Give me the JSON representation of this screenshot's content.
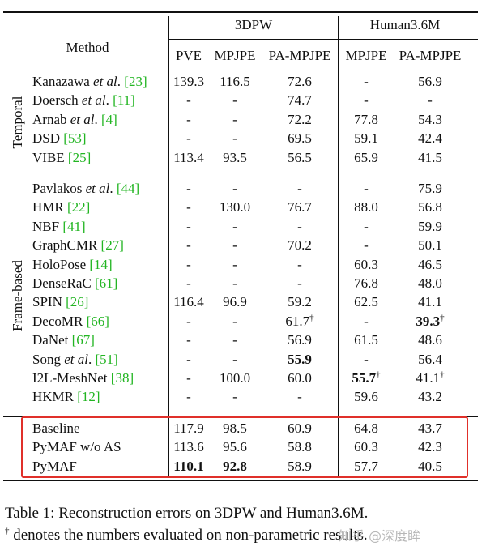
{
  "header": {
    "method": "Method",
    "group1": "3DPW",
    "group2": "Human3.6M",
    "cols": [
      "PVE",
      "MPJPE",
      "PA-MPJPE",
      "MPJPE",
      "PA-MPJPE"
    ]
  },
  "groups": [
    {
      "label": "Temporal",
      "rows": [
        {
          "name": "Kanazawa ",
          "em": "et al",
          "rest": ".",
          "ref": "[23]",
          "vals": [
            "139.3",
            "116.5",
            "72.6",
            "-",
            "56.9"
          ]
        },
        {
          "name": "Doersch ",
          "em": "et al",
          "rest": ".",
          "ref": "[11]",
          "vals": [
            "-",
            "-",
            "74.7",
            "-",
            "-"
          ]
        },
        {
          "name": "Arnab ",
          "em": "et al",
          "rest": ".",
          "ref": "[4]",
          "vals": [
            "-",
            "-",
            "72.2",
            "77.8",
            "54.3"
          ]
        },
        {
          "name": "DSD ",
          "em": "",
          "rest": "",
          "ref": "[53]",
          "vals": [
            "-",
            "-",
            "69.5",
            "59.1",
            "42.4"
          ]
        },
        {
          "name": "VIBE ",
          "em": "",
          "rest": "",
          "ref": "[25]",
          "vals": [
            "113.4",
            "93.5",
            "56.5",
            "65.9",
            "41.5"
          ]
        }
      ]
    },
    {
      "label": "Frame-based",
      "rows": [
        {
          "name": "Pavlakos ",
          "em": "et al",
          "rest": ".",
          "ref": "[44]",
          "vals": [
            "-",
            "-",
            "-",
            "-",
            "75.9"
          ]
        },
        {
          "name": "HMR ",
          "em": "",
          "rest": "",
          "ref": "[22]",
          "vals": [
            "-",
            "130.0",
            "76.7",
            "88.0",
            "56.8"
          ]
        },
        {
          "name": "NBF ",
          "em": "",
          "rest": "",
          "ref": "[41]",
          "vals": [
            "-",
            "-",
            "-",
            "-",
            "59.9"
          ]
        },
        {
          "name": "GraphCMR ",
          "em": "",
          "rest": "",
          "ref": "[27]",
          "vals": [
            "-",
            "-",
            "70.2",
            "-",
            "50.1"
          ]
        },
        {
          "name": "HoloPose ",
          "em": "",
          "rest": "",
          "ref": "[14]",
          "vals": [
            "-",
            "-",
            "-",
            "60.3",
            "46.5"
          ]
        },
        {
          "name": "DenseRaC ",
          "em": "",
          "rest": "",
          "ref": "[61]",
          "vals": [
            "-",
            "-",
            "-",
            "76.8",
            "48.0"
          ]
        },
        {
          "name": "SPIN ",
          "em": "",
          "rest": "",
          "ref": "[26]",
          "vals": [
            "116.4",
            "96.9",
            "59.2",
            "62.5",
            "41.1"
          ]
        },
        {
          "name": "DecoMR ",
          "em": "",
          "rest": "",
          "ref": "[66]",
          "vals": [
            "-",
            "-",
            "61.7†",
            "-",
            "39.3†"
          ]
        },
        {
          "name": "DaNet ",
          "em": "",
          "rest": "",
          "ref": "[67]",
          "vals": [
            "-",
            "-",
            "56.9",
            "61.5",
            "48.6"
          ]
        },
        {
          "name": "Song ",
          "em": "et al",
          "rest": ".",
          "ref": "[51]",
          "vals": [
            "-",
            "-",
            "55.9",
            "-",
            "56.4"
          ]
        },
        {
          "name": "I2L-MeshNet ",
          "em": "",
          "rest": "",
          "ref": "[38]",
          "vals": [
            "-",
            "100.0",
            "60.0",
            "55.7†",
            "41.1†"
          ]
        },
        {
          "name": "HKMR ",
          "em": "",
          "rest": "",
          "ref": "[12]",
          "vals": [
            "-",
            "-",
            "-",
            "59.6",
            "43.2"
          ]
        }
      ]
    },
    {
      "label": "",
      "rows": [
        {
          "name": "Baseline",
          "em": "",
          "rest": "",
          "ref": "",
          "vals": [
            "117.9",
            "98.5",
            "60.9",
            "64.8",
            "43.7"
          ]
        },
        {
          "name": "PyMAF w/o AS",
          "em": "",
          "rest": "",
          "ref": "",
          "vals": [
            "113.6",
            "95.6",
            "58.8",
            "60.3",
            "42.3"
          ]
        },
        {
          "name": "PyMAF",
          "em": "",
          "rest": "",
          "ref": "",
          "vals": [
            "110.1",
            "92.8",
            "58.9",
            "57.7",
            "40.5"
          ]
        }
      ]
    }
  ],
  "bold_cells": [
    "1.7.4",
    "1.9.2",
    "1.10.3",
    "2.2.0",
    "2.2.1"
  ],
  "caption": {
    "line1": "Table 1: Reconstruction errors on 3DPW and Human3.6M.",
    "line2_sym": "†",
    "line2": " denotes the numbers evaluated on non-parametric results."
  },
  "watermark": "知乎 @深度眸",
  "colors": {
    "highlight_box": "#e0302a",
    "citation": "#22b522"
  }
}
